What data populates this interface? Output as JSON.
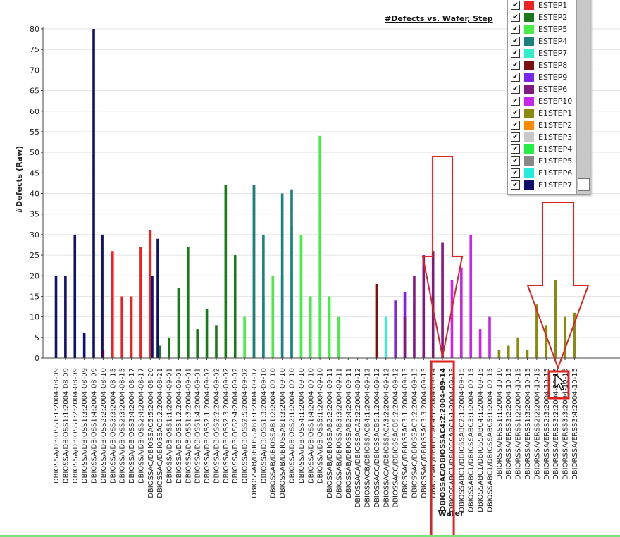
{
  "chart_data": {
    "type": "bar",
    "title": "#Defects vs. Wafer, Step",
    "xlabel": "Wafer",
    "ylabel": "#Defects (Raw)",
    "ylim": [
      0,
      80
    ],
    "yticks": [
      0,
      5,
      10,
      15,
      20,
      25,
      30,
      35,
      40,
      45,
      50,
      55,
      60,
      65,
      70,
      75,
      80
    ],
    "grid": true,
    "legend_position": "top-right",
    "categories": [
      "DBIOSSA/DBIOSS1:1:2004-08-09",
      "DBIOSSA/DBIOSS1:1:2004-08-09",
      "DBIOSSA/DBIOSS1:2:2004-08-09",
      "DBIOSSA/DBIOSS1:3:2004-08-09",
      "DBIOSSA/DBIOSS1:4:2004-08-09",
      "DBIOSSA/DBIOSS2:2:2004-08-10",
      "DBIOSSA/DBIOSS3:3:2004-08-15",
      "DBIOSSA/DBIOSS2:3:2004-08-15",
      "DBIOSSA/DBIOSS3:4:2004-08-17",
      "DBIOSSA/DBIOSS2:4:2004-08-17",
      "DBIOSSAC/DBIOSSAC5:5:2004-08-20",
      "DBIOSSAC/DBIOSSAC5:2:2004-08-21",
      "DBIOSSA/DBIOSS1:1:2004-09-01",
      "DBIOSSA/DBIOSS1:2:2004-09-01",
      "DBIOSSA/DBIOSS1:3:2004-09-01",
      "DBIOSSA/DBIOSS1:4:2004-09-01",
      "DBIOSSA/DBIOSS2:1:2004-09-02",
      "DBIOSSA/DBIOSS2:2:2004-09-02",
      "DBIOSSA/DBIOSS2:3:2004-09-02",
      "DBIOSSA/DBIOSS2:4:2004-09-02",
      "DBIOSSA/DBIOSS2:5:2004-09-02",
      "DBIOSSAB/DBIOSSAB1:1:2004-09-07",
      "DBIOSSA/DBIOSS1:3:2004-09-10",
      "DBIOSSAB/DBIOSSAB1:2:2004-09-10",
      "DBIOSSAB/DBIOSSAB1:3:2004-09-10",
      "DBIOSSA/DBIOSS2:1:2004-09-10",
      "DBIOSSA/DBIOSS4:1:2004-09-10",
      "DBIOSSA/DBIOSS1:4:2004-09-10",
      "DBIOSSA/DBIOSS5:1:2004-09-10",
      "DBIOSSAB/DBIOSSAB2:2:2004-09-11",
      "DBIOSSAB/DBIOSSAB3:3:2004-09-11",
      "DBIOSSAB/DBIOSSAB2:4:2004-09-11",
      "DBIOSSACA/DBIOSSACA3:2:2004-09-12",
      "DBIOSSACB/DBIOSSACB4:1:2004-09-12",
      "DBIOSSACC/DBIOSSACB5:1:2004-09-12",
      "DBIOSSACA/DBIOSSACA3:2:2004-09-12",
      "DBIOSSACC/DBIOSSACB5:2:2004-09-12",
      "DBIOSSAC/DBIOSSAC3:1:2004-09-13",
      "DBIOSSAC/DBIOSSAC3:2:2004-09-13",
      "DBIOSSAC/DBIOSSAC3:3:2004-09-13",
      "DBIOSSAC/DBIOSSAC4:1:2004-09-14",
      "DBIOSSAC/DBIOSSAC4:2:2004-09-14",
      "DBIOSSABC1/DBIOSSABC1:1:2004-09-15",
      "DBIOSSABC1/DBIOSSABC2:1:2004-09-15",
      "DBIOSSABC1/DBIOSSABC3:1:2004-09-15",
      "DBIOSSABC1/DBIOSSABC4:1:2004-09-15",
      "DBIOSSABC1/DBIOSSABC5:1:2004-09-15",
      "DBIORSSA/ERSS1:1:2004-10-10",
      "DBIORSSA/ERSS3:2:2004-10-15",
      "DBIORSSA/ERSS1:2:2004-10-15",
      "DBIORSSA/ERSS1:3:2004-10-15",
      "DBIORSSA/ERSS2:2:2004-10-15",
      "DBIORSSA/ERSS2:3:2004-10-15",
      "DBIORSSA/ERSS3:2:2004-10-15",
      "DBIORSSA/ERSS3:3:2004-10-15",
      "DBIORSSA/ERSS3:4:2004-10-15"
    ],
    "highlighted_category_index": 41,
    "series": [
      {
        "name": "ESTEP1",
        "color": "#ee2222",
        "points": [
          [
            5,
            2
          ],
          [
            6,
            26
          ],
          [
            7,
            15
          ],
          [
            8,
            15
          ],
          [
            9,
            27
          ],
          [
            10,
            31
          ]
        ]
      },
      {
        "name": "ESTEP2",
        "color": "#1a7a1a",
        "points": [
          [
            11,
            3
          ],
          [
            12,
            5
          ],
          [
            13,
            17
          ],
          [
            14,
            27
          ],
          [
            15,
            7
          ],
          [
            16,
            12
          ],
          [
            17,
            8
          ],
          [
            18,
            42
          ],
          [
            19,
            25
          ],
          [
            21,
            42
          ]
        ]
      },
      {
        "name": "ESTEP5",
        "color": "#44ee44",
        "points": [
          [
            20,
            10
          ],
          [
            22,
            15
          ],
          [
            23,
            20
          ],
          [
            24,
            20
          ],
          [
            25,
            32
          ],
          [
            26,
            30
          ],
          [
            27,
            15
          ],
          [
            28,
            54
          ],
          [
            29,
            15
          ],
          [
            30,
            10
          ]
        ]
      },
      {
        "name": "ESTEP4",
        "color": "#1a8080",
        "points": [
          [
            21,
            42
          ],
          [
            22,
            30
          ],
          [
            24,
            40
          ],
          [
            25,
            41
          ]
        ]
      },
      {
        "name": "ESTEP7",
        "color": "#33eecc",
        "points": [
          [
            35,
            10
          ]
        ]
      },
      {
        "name": "ESTEP8",
        "color": "#7a1010",
        "points": [
          [
            34,
            18
          ]
        ]
      },
      {
        "name": "ESTEP9",
        "color": "#7a22ee",
        "points": [
          [
            36,
            14
          ],
          [
            37,
            16
          ]
        ]
      },
      {
        "name": "ESTEP6",
        "color": "#801880",
        "points": [
          [
            37,
            10
          ],
          [
            38,
            20
          ],
          [
            39,
            25
          ],
          [
            40,
            26
          ],
          [
            41,
            28
          ]
        ]
      },
      {
        "name": "ESTEP10",
        "color": "#cc22ee",
        "points": [
          [
            42,
            19
          ],
          [
            43,
            22
          ],
          [
            44,
            30
          ],
          [
            45,
            7
          ],
          [
            46,
            10
          ]
        ]
      },
      {
        "name": "E1STEP1",
        "color": "#8a8a10",
        "points": [
          [
            47,
            2
          ],
          [
            48,
            3
          ],
          [
            49,
            5
          ],
          [
            50,
            2
          ],
          [
            51,
            13
          ],
          [
            52,
            8
          ],
          [
            53,
            19
          ],
          [
            54,
            10
          ],
          [
            55,
            11
          ]
        ]
      },
      {
        "name": "E1STEP2",
        "color": "#ff8800",
        "points": []
      },
      {
        "name": "E1STEP3",
        "color": "#c8c8c8",
        "points": []
      },
      {
        "name": "E1STEP4",
        "color": "#22ee44",
        "points": []
      },
      {
        "name": "E1STEP5",
        "color": "#888888",
        "points": []
      },
      {
        "name": "E1STEP6",
        "color": "#22eedd",
        "points": []
      },
      {
        "name": "E1STEP7",
        "color": "#10106e",
        "points": [
          [
            0,
            20
          ],
          [
            1,
            20
          ],
          [
            2,
            30
          ],
          [
            3,
            6
          ],
          [
            4,
            80
          ],
          [
            4.9,
            30
          ],
          [
            10.2,
            20
          ],
          [
            10.8,
            29
          ]
        ]
      }
    ]
  },
  "legend": {
    "checked": true,
    "items": [
      {
        "label": "ESTEP1",
        "color": "#ee2222"
      },
      {
        "label": "ESTEP2",
        "color": "#1a7a1a"
      },
      {
        "label": "ESTEP5",
        "color": "#44ee44"
      },
      {
        "label": "ESTEP4",
        "color": "#1a8080"
      },
      {
        "label": "ESTEP7",
        "color": "#33eecc"
      },
      {
        "label": "ESTEP8",
        "color": "#7a1010"
      },
      {
        "label": "ESTEP9",
        "color": "#7a22ee"
      },
      {
        "label": "ESTEP6",
        "color": "#801880"
      },
      {
        "label": "ESTEP10",
        "color": "#cc22ee"
      },
      {
        "label": "E1STEP1",
        "color": "#8a8a10"
      },
      {
        "label": "E1STEP2",
        "color": "#ff8800"
      },
      {
        "label": "E1STEP3",
        "color": "#c8c8c8"
      },
      {
        "label": "E1STEP4",
        "color": "#22ee44"
      },
      {
        "label": "E1STEP5",
        "color": "#888888"
      },
      {
        "label": "E1STEP6",
        "color": "#22eedd"
      },
      {
        "label": "E1STEP7",
        "color": "#10106e"
      }
    ]
  },
  "annotations": {
    "arrow_color": "#dd2222",
    "arrows": [
      "down-arrow-over-highlighted-wafer",
      "down-arrow-over-cursor"
    ]
  },
  "colors": {
    "grid": "#e4e4e4",
    "axis": "#444444",
    "bottom_line": "#7ee07e"
  }
}
